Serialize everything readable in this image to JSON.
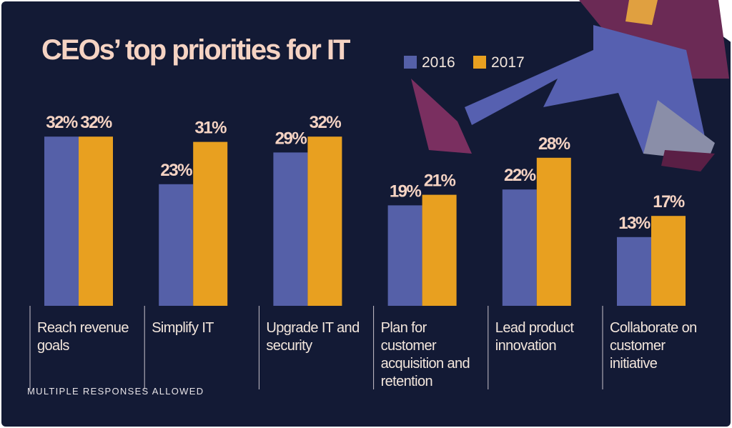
{
  "chart_data": {
    "type": "bar",
    "title": "CEOs’ top priorities for IT",
    "note": "MULTIPLE RESPONSES ALLOWED",
    "categories": [
      "Reach revenue goals",
      "Simplify IT",
      "Upgrade IT and security",
      "Plan for customer acquisition and retention",
      "Lead product innovation",
      "Collaborate on customer initiative"
    ],
    "series": [
      {
        "name": "2016",
        "color": "#5560a8",
        "values": [
          32,
          23,
          29,
          19,
          22,
          13
        ],
        "value_labels": [
          "32%",
          "23%",
          "29%",
          "19%",
          "22%",
          "13%"
        ]
      },
      {
        "name": "2017",
        "color": "#e8a020",
        "values": [
          32,
          31,
          32,
          21,
          28,
          17
        ],
        "value_labels": [
          "32%",
          "31%",
          "32%",
          "21%",
          "28%",
          "17%"
        ]
      }
    ]
  }
}
